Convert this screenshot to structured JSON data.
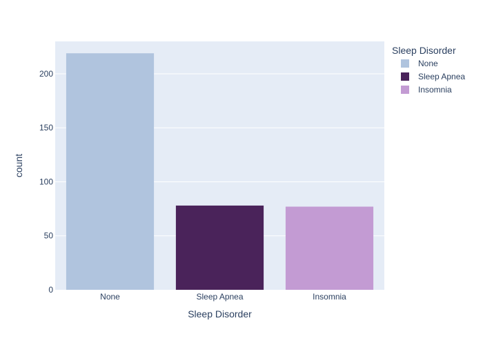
{
  "chart_data": {
    "type": "bar",
    "title": "",
    "xlabel": "Sleep Disorder",
    "ylabel": "count",
    "categories": [
      "None",
      "Sleep Apnea",
      "Insomnia"
    ],
    "values": [
      219,
      78,
      77
    ],
    "colors": [
      "#b0c4de",
      "#4a235a",
      "#c39bd3"
    ],
    "ylim": [
      0,
      230
    ],
    "yticks": [
      0,
      50,
      100,
      150,
      200
    ],
    "grid": true,
    "legend": {
      "title": "Sleep Disorder",
      "placement": "top-right",
      "items": [
        "None",
        "Sleep Apnea",
        "Insomnia"
      ]
    },
    "plot_background": "#e5ecf6",
    "gridline_color": "#ffffff"
  }
}
